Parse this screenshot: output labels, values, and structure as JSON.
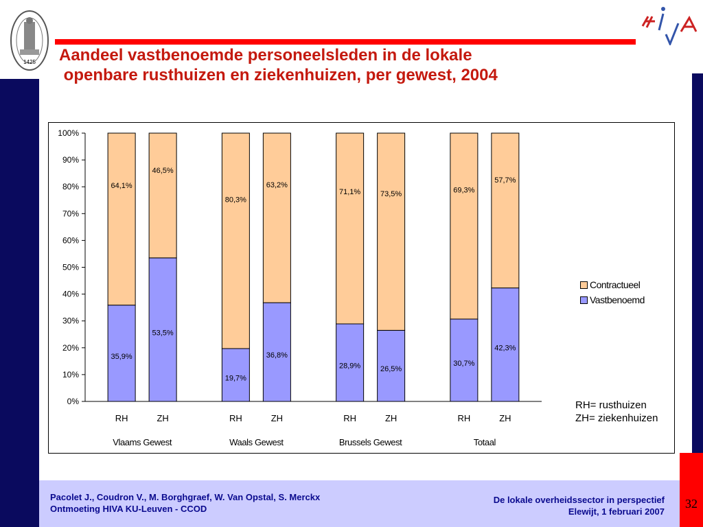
{
  "title": "Aandeel vastbenoemde personeelsleden in de lokale\n openbare rusthuizen en ziekenhuizen, per gewest, 2004",
  "seal": {
    "label": "KU Leuven seal",
    "year": "1425"
  },
  "logo": {
    "text": "HIVA"
  },
  "legend": [
    {
      "name": "Contractueel",
      "color": "#ffcc99"
    },
    {
      "name": "Vastbenoemd",
      "color": "#9999ff"
    }
  ],
  "note": [
    "RH= rusthuizen",
    "ZH= ziekenhuizen"
  ],
  "footer": {
    "left": [
      "Pacolet J., Coudron V., M. Borghgraef, W. Van Opstal, S. Merckx",
      "Ontmoeting HIVA KU-Leuven - CCOD"
    ],
    "right": [
      "De lokale overheidssector in perspectief",
      "Elewijt, 1 februari 2007"
    ]
  },
  "page_number": "32",
  "chart_data": {
    "type": "bar",
    "stacked": true,
    "percent": true,
    "title": "Aandeel vastbenoemde personeelsleden in de lokale openbare rusthuizen en ziekenhuizen, per gewest, 2004",
    "ylim": [
      0,
      100
    ],
    "yticks": [
      "0%",
      "10%",
      "20%",
      "30%",
      "40%",
      "50%",
      "60%",
      "70%",
      "80%",
      "90%",
      "100%"
    ],
    "groups": [
      "Vlaams Gewest",
      "Waals Gewest",
      "Brussels Gewest",
      "Totaal"
    ],
    "categories": [
      "RH",
      "ZH",
      "RH",
      "ZH",
      "RH",
      "ZH",
      "RH",
      "ZH"
    ],
    "series": [
      {
        "name": "Vastbenoemd",
        "color": "#9999ff",
        "values": [
          35.9,
          53.5,
          19.7,
          36.8,
          28.9,
          26.5,
          30.7,
          42.3
        ],
        "labels": [
          "35,9%",
          "53,5%",
          "19,7%",
          "36,8%",
          "28,9%",
          "26,5%",
          "30,7%",
          "42,3%"
        ]
      },
      {
        "name": "Contractueel",
        "color": "#ffcc99",
        "values": [
          64.1,
          46.5,
          80.3,
          63.2,
          71.1,
          73.5,
          69.3,
          57.7
        ],
        "labels": [
          "64,1%",
          "46,5%",
          "80,3%",
          "63,2%",
          "71,1%",
          "73,5%",
          "69,3%",
          "57,7%"
        ]
      }
    ],
    "grid": false,
    "legend_position": "right"
  }
}
